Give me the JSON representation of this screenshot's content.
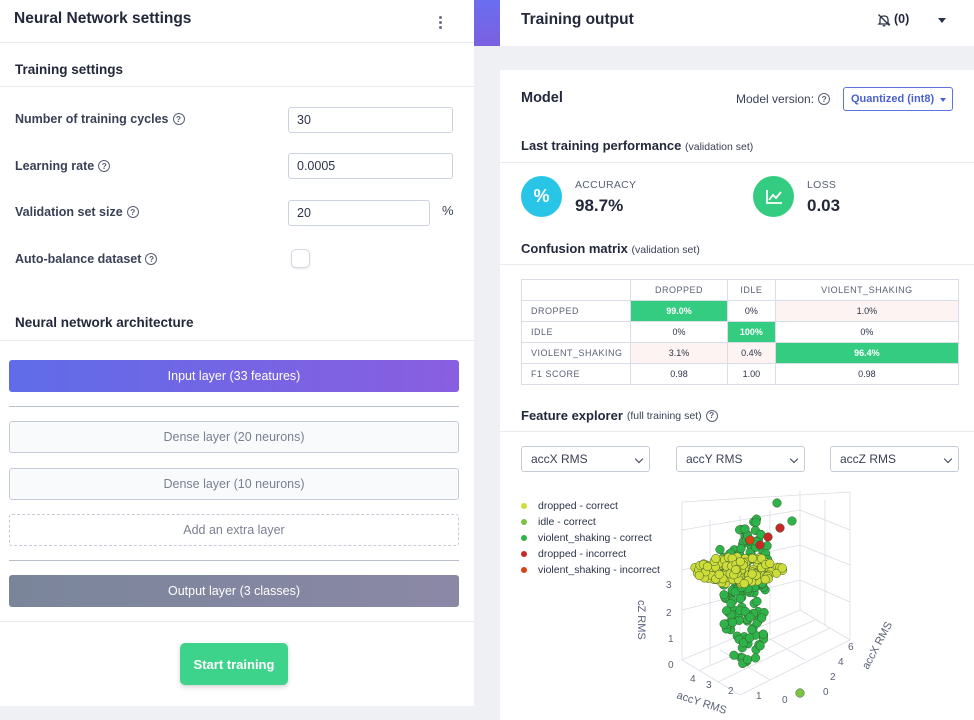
{
  "left": {
    "title": "Neural Network settings",
    "training_settings_title": "Training settings",
    "fields": {
      "cycles_label": "Number of training cycles",
      "cycles_value": "30",
      "lr_label": "Learning rate",
      "lr_value": "0.0005",
      "val_label": "Validation set size",
      "val_value": "20",
      "val_unit": "%",
      "balance_label": "Auto-balance dataset"
    },
    "help_glyph": "?",
    "arch_title": "Neural network architecture",
    "layers": {
      "input": "Input layer (33 features)",
      "dense1": "Dense layer (20 neurons)",
      "dense2": "Dense layer (10 neurons)",
      "add": "Add an extra layer",
      "output": "Output layer (3 classes)"
    },
    "start_button": "Start training"
  },
  "right": {
    "title": "Training output",
    "notif_count": "(0)",
    "model_title": "Model",
    "model_version_label": "Model version:",
    "model_version_value": "Quantized (int8)",
    "perf_title": "Last training performance",
    "perf_subtitle": "(validation set)",
    "accuracy_label": "ACCURACY",
    "accuracy_value": "98.7%",
    "accuracy_icon_glyph": "%",
    "loss_label": "LOSS",
    "loss_value": "0.03",
    "cm_title": "Confusion matrix",
    "cm_subtitle": "(validation set)",
    "cm": {
      "columns": [
        "DROPPED",
        "IDLE",
        "VIOLENT_SHAKING"
      ],
      "rows": [
        {
          "label": "DROPPED",
          "cells": [
            "99.0%",
            "0%",
            "1.0%"
          ]
        },
        {
          "label": "IDLE",
          "cells": [
            "0%",
            "100%",
            "0%"
          ]
        },
        {
          "label": "VIOLENT_SHAKING",
          "cells": [
            "3.1%",
            "0.4%",
            "96.4%"
          ]
        },
        {
          "label": "F1 SCORE",
          "cells": [
            "0.98",
            "1.00",
            "0.98"
          ]
        }
      ]
    },
    "fx_title": "Feature explorer",
    "fx_subtitle": "(full training set)",
    "fx_axes": [
      "accX RMS",
      "accY RMS",
      "accZ RMS"
    ],
    "legend": [
      {
        "label": "dropped - correct",
        "color": "#cddc39"
      },
      {
        "label": "idle - correct",
        "color": "#7cc242"
      },
      {
        "label": "violent_shaking - correct",
        "color": "#2db34a"
      },
      {
        "label": "dropped - incorrect",
        "color": "#c62828"
      },
      {
        "label": "violent_shaking - incorrect",
        "color": "#d84315"
      }
    ],
    "plot_labels": {
      "z_axis": "cZ RMS",
      "y_axis": "accY RMS",
      "x_axis": "accX RMS",
      "z_ticks": [
        "3",
        "2",
        "1",
        "0"
      ],
      "y_ticks": [
        "4",
        "3",
        "2",
        "1",
        "0"
      ],
      "x_ticks": [
        "0",
        "2",
        "4",
        "6"
      ]
    }
  },
  "colors": {
    "accent_green": "#3ed38a",
    "accuracy_circle": "#29c5e6",
    "loss_circle": "#33cc80"
  }
}
